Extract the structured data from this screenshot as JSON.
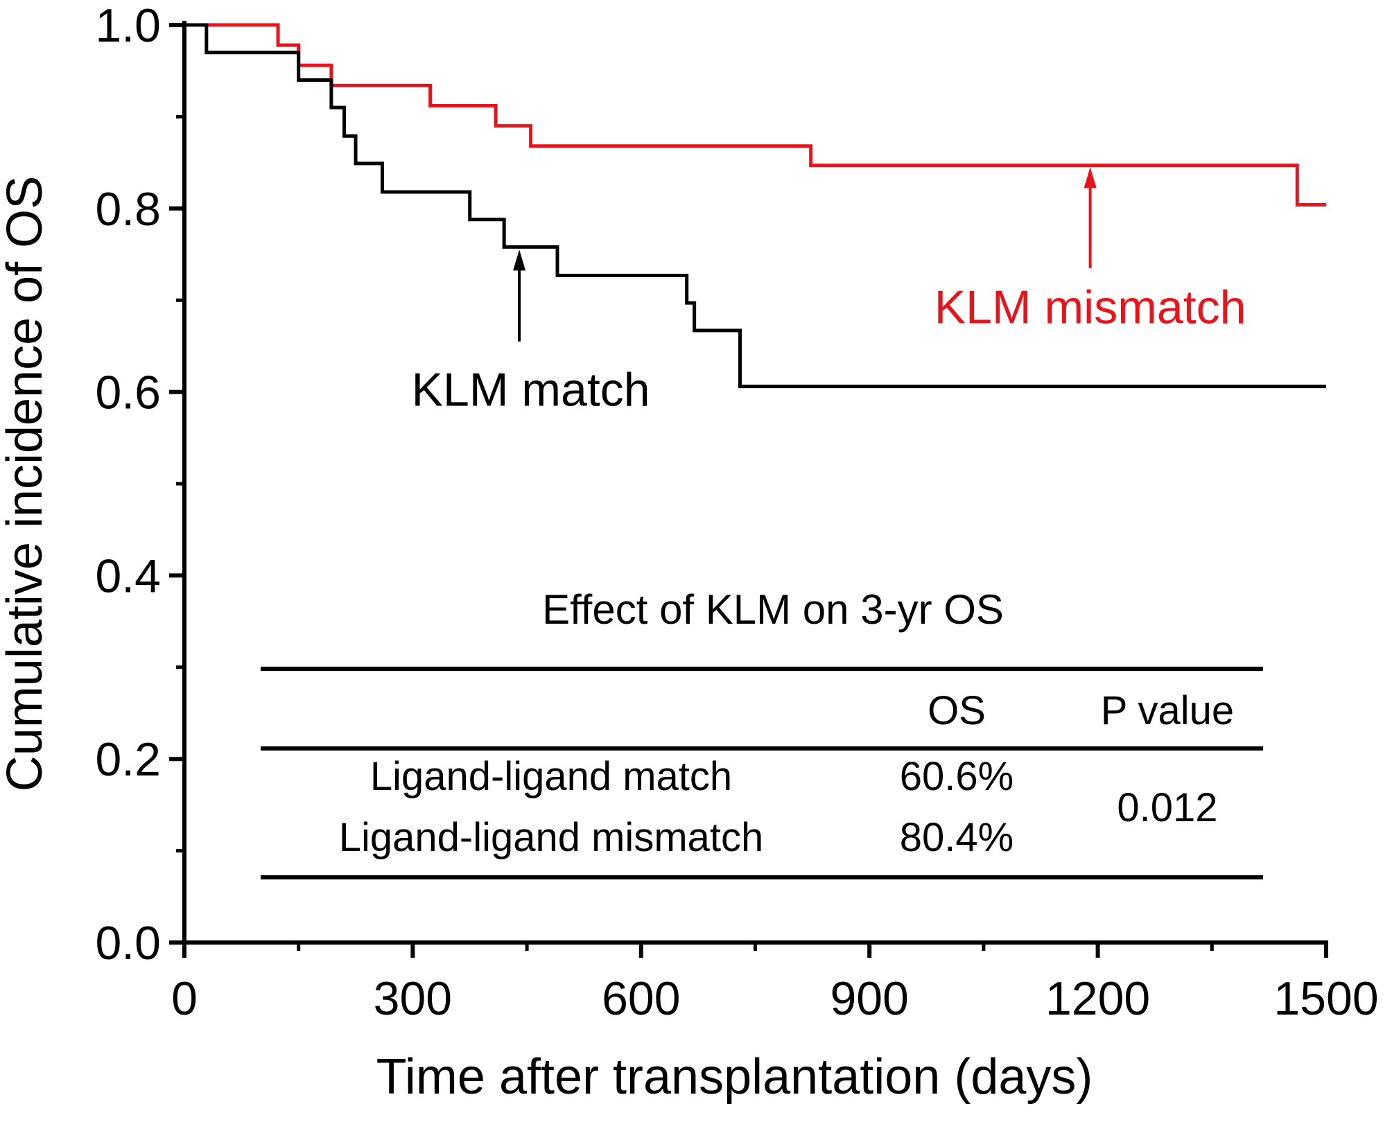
{
  "chart_data": {
    "type": "line",
    "step": true,
    "title": "",
    "xlabel": "Time after transplantation (days)",
    "ylabel": "Cumulative incidence of OS",
    "xlim": [
      0,
      1500
    ],
    "ylim": [
      0.0,
      1.0
    ],
    "xticks": [
      0,
      300,
      600,
      900,
      1200,
      1500
    ],
    "yticks": [
      0.0,
      0.2,
      0.4,
      0.6,
      0.8,
      1.0
    ],
    "xtick_labels": [
      "0",
      "300",
      "600",
      "900",
      "1200",
      "1500"
    ],
    "ytick_labels": [
      "0.0",
      "0.2",
      "0.4",
      "0.6",
      "0.8",
      "1.0"
    ],
    "series": [
      {
        "name": "KLM mismatch",
        "color": "#e8141c",
        "x": [
          0,
          123,
          150,
          193,
          323,
          409,
          455,
          823,
          1462,
          1500
        ],
        "y": [
          1.0,
          0.978,
          0.956,
          0.934,
          0.912,
          0.89,
          0.868,
          0.847,
          0.804,
          0.804
        ]
      },
      {
        "name": "KLM match",
        "color": "#000000",
        "x": [
          0,
          29,
          150,
          193,
          210,
          225,
          260,
          375,
          420,
          490,
          660,
          670,
          730,
          1500
        ],
        "y": [
          1.0,
          0.97,
          0.94,
          0.91,
          0.879,
          0.849,
          0.818,
          0.788,
          0.758,
          0.727,
          0.697,
          0.667,
          0.606,
          0.606
        ]
      }
    ],
    "annotations": [
      {
        "label": "KLM match",
        "series": "KLM match",
        "arrow_x": 440,
        "arrow_y": 0.755,
        "arrow_from_y": 0.655,
        "text_x": 455,
        "text_y": 0.585,
        "color": "#000000"
      },
      {
        "label": "KLM mismatch",
        "series": "KLM mismatch",
        "arrow_x": 1190,
        "arrow_y": 0.845,
        "arrow_from_y": 0.735,
        "text_x": 1190,
        "text_y": 0.675,
        "color": "#e8141c"
      }
    ],
    "inset_table": {
      "title": "Effect of KLM on 3-yr OS",
      "headers": [
        "",
        "OS",
        "P value"
      ],
      "rows": [
        {
          "label": "Ligand-ligand match",
          "os": "60.6%"
        },
        {
          "label": "Ligand-ligand mismatch",
          "os": "80.4%"
        }
      ],
      "p_value": "0.012"
    }
  }
}
